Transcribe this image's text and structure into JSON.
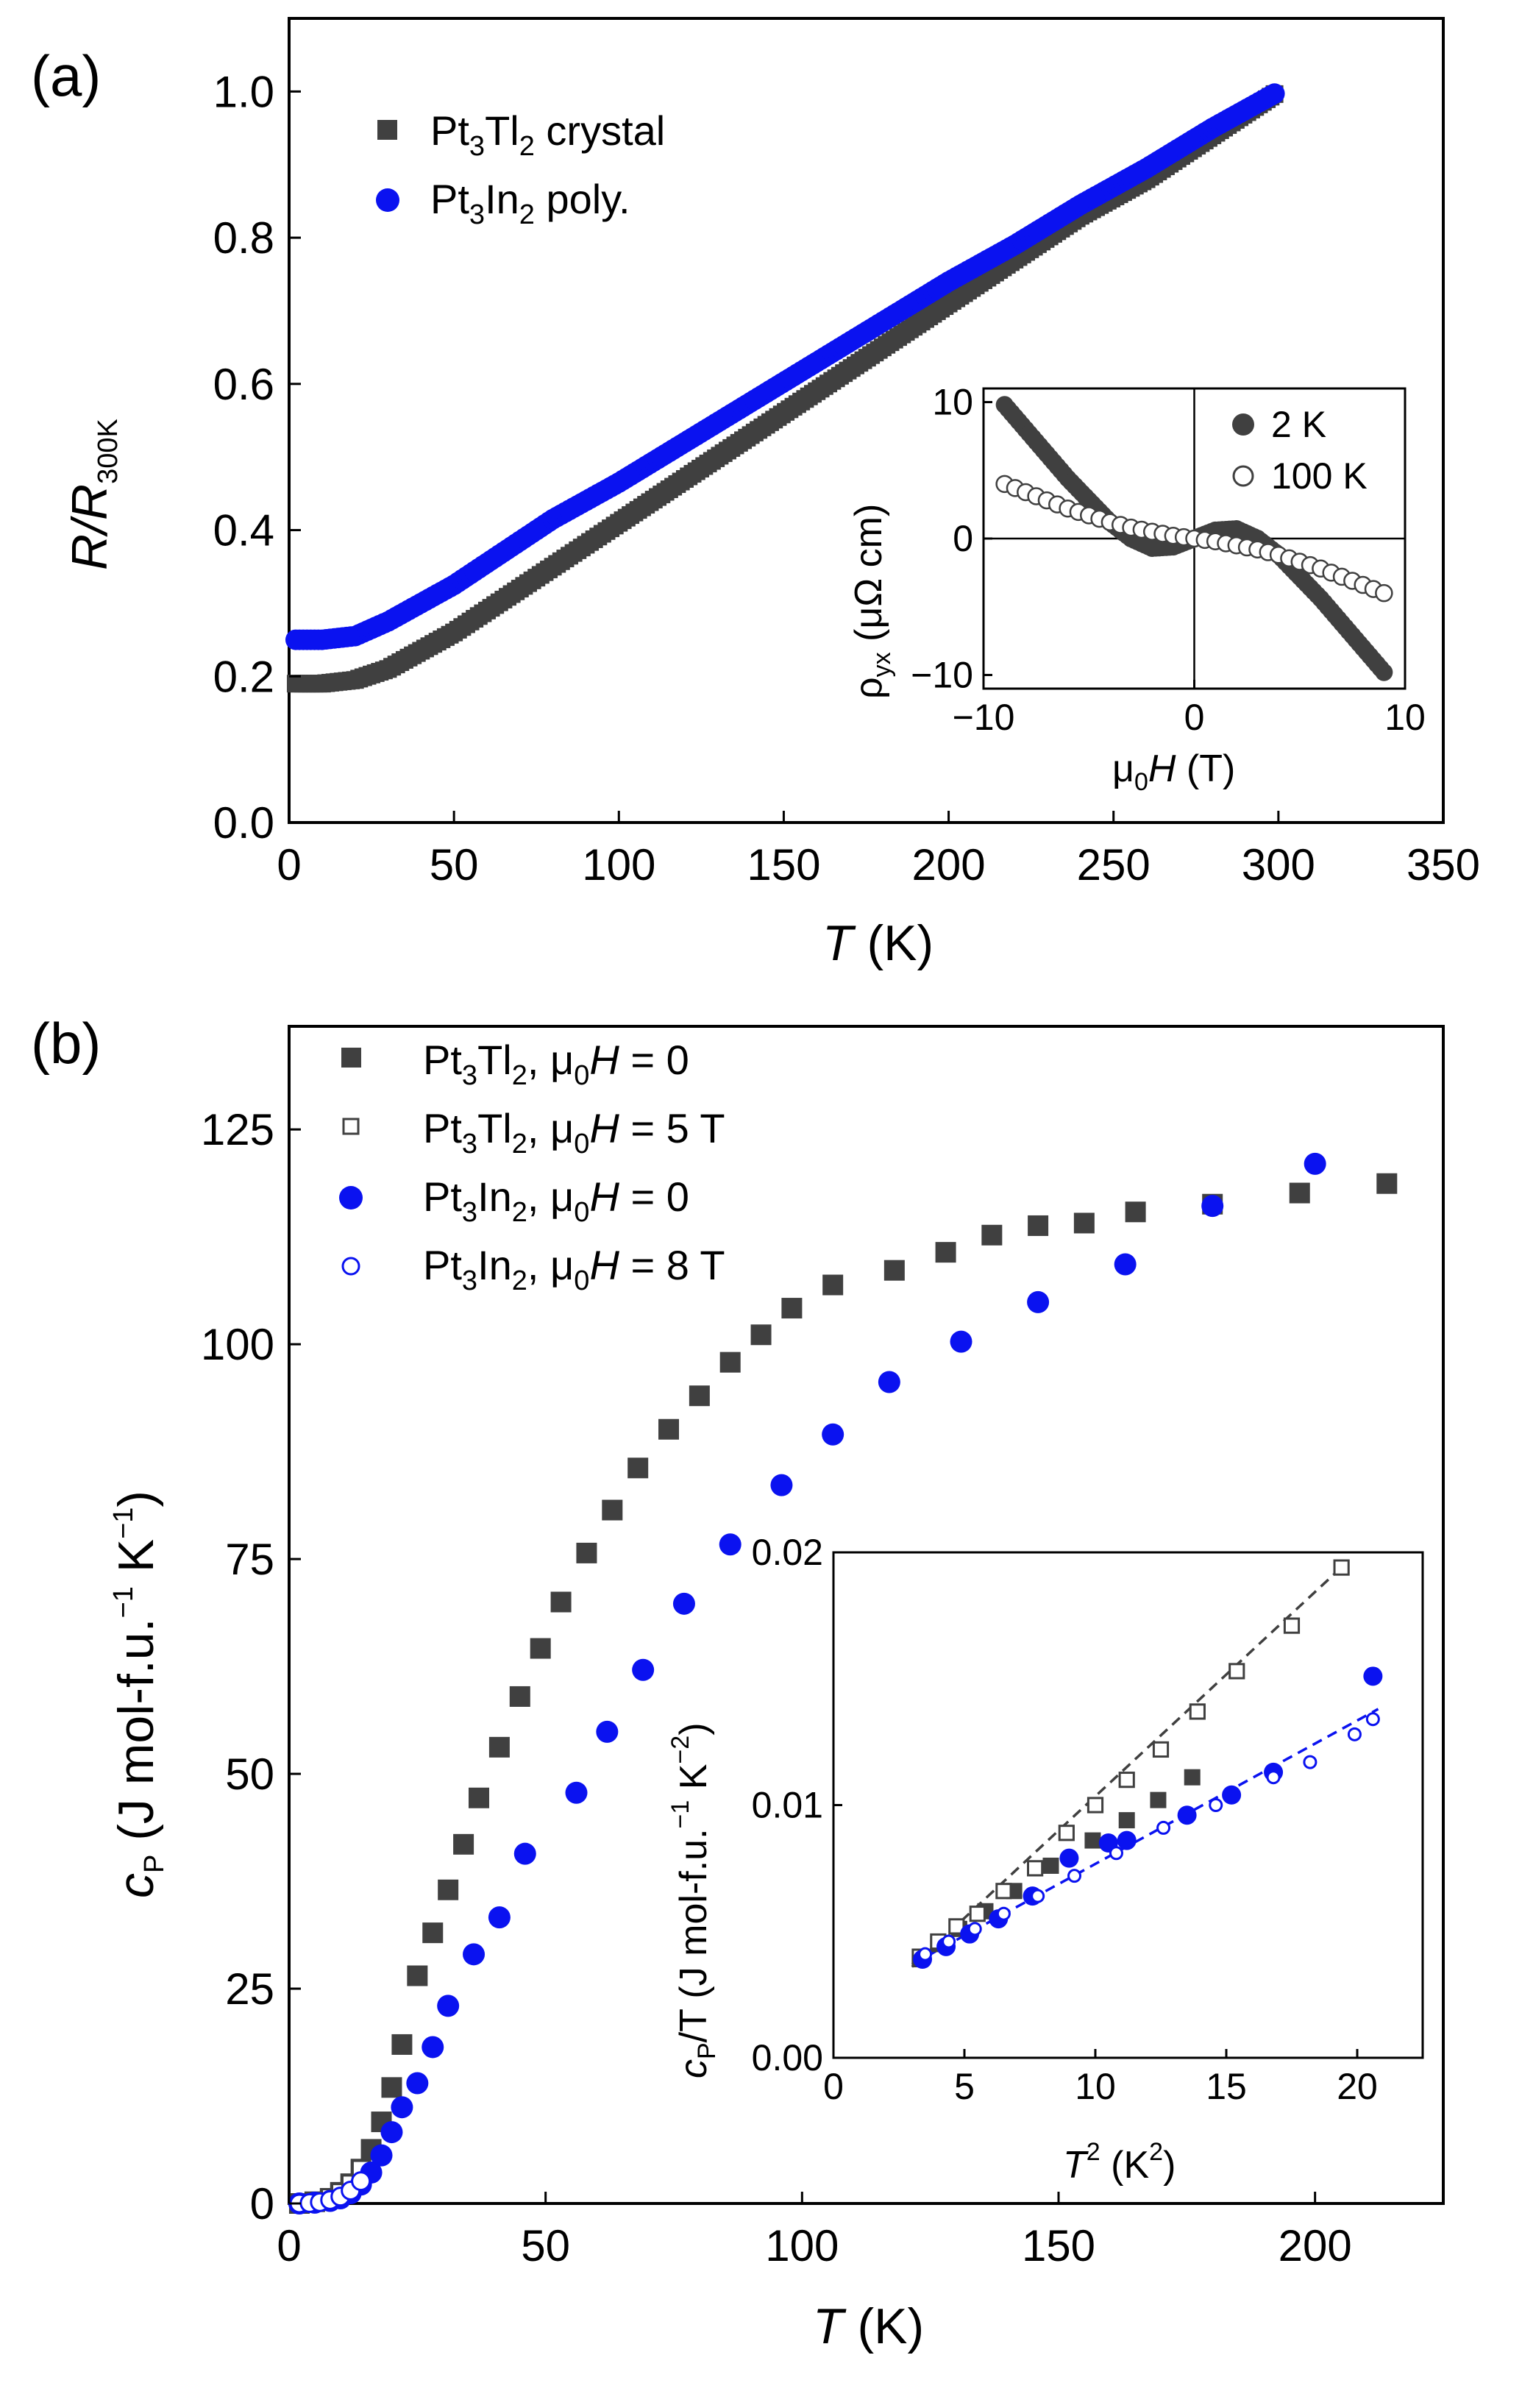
{
  "colors": {
    "dark": "#404040",
    "blue": "#0a12f0",
    "axis": "#000000"
  },
  "panel_a": {
    "label": "(a)",
    "ylabel_main": "R/R",
    "ylabel_sub": "300K",
    "xlabel_var": "T",
    "xlabel_unit": " (K)",
    "xticks": [
      "0",
      "50",
      "100",
      "150",
      "200",
      "250",
      "300",
      "350"
    ],
    "yticks": [
      "0.0",
      "0.2",
      "0.4",
      "0.6",
      "0.8",
      "1.0"
    ],
    "legend": [
      {
        "main": "Pt",
        "sub1": "3",
        "mid": "Tl",
        "sub2": "2",
        "tail": " crystal",
        "marker": "square-filled"
      },
      {
        "main": "Pt",
        "sub1": "3",
        "mid": "In",
        "sub2": "2",
        "tail": " poly.",
        "marker": "circle-filled"
      }
    ],
    "inset": {
      "ylabel_main": "ρ",
      "ylabel_sub": "yx",
      "ylabel_unit": " (μΩ cm)",
      "xlabel_pre": "μ",
      "xlabel_sub": "0",
      "xlabel_var": "H",
      "xlabel_unit": " (T)",
      "xticks": [
        "−10",
        "0",
        "10"
      ],
      "yticks": [
        "−10",
        "0",
        "10"
      ],
      "legend": [
        "2 K",
        "100 K"
      ]
    }
  },
  "panel_b": {
    "label": "(b)",
    "ylabel_main": "c",
    "ylabel_sub": "P",
    "ylabel_unit": " (J mol-f.u.",
    "ylabel_sup1": "−1",
    "ylabel_unit2": " K",
    "ylabel_sup2": "−1",
    "ylabel_close": ")",
    "xlabel_var": "T",
    "xlabel_unit": " (K)",
    "xticks": [
      "0",
      "50",
      "100",
      "150",
      "200"
    ],
    "yticks": [
      "0",
      "25",
      "50",
      "75",
      "100",
      "125"
    ],
    "legend": [
      {
        "compound": "Pt3Tl2",
        "field": " = 0",
        "marker": "square-filled"
      },
      {
        "compound": "Pt3Tl2",
        "field": " = 5 T",
        "marker": "square-open"
      },
      {
        "compound": "Pt3In2",
        "field": " = 0",
        "marker": "circle-filled"
      },
      {
        "compound": "Pt3In2",
        "field": " = 8 T",
        "marker": "circle-open"
      }
    ],
    "inset": {
      "ylabel_main": "c",
      "ylabel_sub": "P",
      "ylabel_rest": "/T (J mol-f.u.",
      "ylabel_sup1": "−1",
      "ylabel_unit2": " K",
      "ylabel_sup2": "−2",
      "ylabel_close": ")",
      "xlabel_var": "T",
      "xlabel_sup": "2",
      "xlabel_unit": " (K",
      "xlabel_unit_sup": "2",
      "xlabel_close": ")",
      "xticks": [
        "0",
        "5",
        "10",
        "15",
        "20"
      ],
      "yticks": [
        "0.00",
        "0.01",
        "0.02"
      ]
    }
  },
  "chart_data": [
    {
      "type": "scatter",
      "panel": "(a)",
      "xlabel": "T (K)",
      "ylabel": "R/R300K",
      "xlim": [
        0,
        350
      ],
      "ylim": [
        0,
        1.1
      ],
      "series": [
        {
          "name": "Pt3Tl2 crystal",
          "marker": "square-filled",
          "color": "#404040",
          "x": [
            2,
            10,
            20,
            30,
            40,
            50,
            60,
            70,
            80,
            90,
            100,
            120,
            140,
            160,
            180,
            200,
            220,
            240,
            260,
            280,
            300
          ],
          "y": [
            0.19,
            0.19,
            0.195,
            0.21,
            0.235,
            0.26,
            0.29,
            0.32,
            0.35,
            0.38,
            0.41,
            0.47,
            0.53,
            0.59,
            0.65,
            0.71,
            0.77,
            0.83,
            0.88,
            0.94,
            1.0
          ]
        },
        {
          "name": "Pt3In2 poly.",
          "marker": "circle-filled",
          "color": "#0a12f0",
          "x": [
            2,
            10,
            20,
            30,
            40,
            50,
            60,
            70,
            80,
            90,
            100,
            120,
            140,
            160,
            180,
            200,
            220,
            240,
            260,
            280,
            300
          ],
          "y": [
            0.25,
            0.25,
            0.255,
            0.275,
            0.3,
            0.325,
            0.355,
            0.385,
            0.415,
            0.44,
            0.465,
            0.52,
            0.575,
            0.63,
            0.685,
            0.74,
            0.79,
            0.845,
            0.895,
            0.95,
            1.0
          ]
        }
      ]
    },
    {
      "type": "scatter",
      "panel": "(a) inset",
      "xlabel": "μ0H (T)",
      "ylabel": "ρyx (μΩ cm)",
      "xlim": [
        -10,
        10
      ],
      "ylim": [
        -11,
        11
      ],
      "series": [
        {
          "name": "2 K",
          "marker": "circle-filled",
          "color": "#404040",
          "x": [
            -9,
            -8,
            -7,
            -6,
            -5,
            -4,
            -3,
            -2,
            -1,
            0,
            1,
            2,
            3,
            4,
            5,
            6,
            7,
            8,
            9
          ],
          "y": [
            9.8,
            8.0,
            6.2,
            4.4,
            2.8,
            1.2,
            0.0,
            -0.7,
            -0.6,
            0.0,
            0.6,
            0.7,
            0.0,
            -1.2,
            -2.8,
            -4.4,
            -6.2,
            -8.0,
            -9.8
          ]
        },
        {
          "name": "100 K",
          "marker": "circle-open",
          "color": "#404040",
          "x": [
            -9,
            -8,
            -7,
            -6,
            -5,
            -4,
            -3,
            -2,
            -1,
            0,
            1,
            2,
            3,
            4,
            5,
            6,
            7,
            8,
            9
          ],
          "y": [
            4.0,
            3.4,
            2.8,
            2.2,
            1.7,
            1.2,
            0.8,
            0.5,
            0.2,
            0.0,
            -0.2,
            -0.5,
            -0.8,
            -1.2,
            -1.7,
            -2.2,
            -2.8,
            -3.4,
            -4.0
          ]
        }
      ]
    },
    {
      "type": "scatter",
      "panel": "(b)",
      "xlabel": "T (K)",
      "ylabel": "cP (J mol-f.u.−1 K−1)",
      "xlim": [
        0,
        225
      ],
      "ylim": [
        0,
        137
      ],
      "series": [
        {
          "name": "Pt3Tl2, μ0H = 0",
          "marker": "square-filled",
          "color": "#404040",
          "x": [
            2,
            5,
            8,
            10,
            12,
            14,
            16,
            18,
            20,
            22,
            25,
            28,
            31,
            34,
            37,
            41,
            45,
            49,
            53,
            58,
            63,
            68,
            74,
            80,
            86,
            92,
            98,
            106,
            118,
            128,
            137,
            146,
            155,
            165,
            180,
            197,
            214
          ],
          "y": [
            0,
            0.2,
            0.6,
            1.3,
            2.3,
            4.0,
            6.3,
            9.5,
            13.5,
            18.5,
            26.5,
            31.5,
            36.5,
            41.8,
            47.2,
            53.1,
            59.0,
            64.6,
            70.0,
            75.7,
            80.7,
            85.6,
            90.1,
            94.0,
            97.9,
            101.1,
            104.2,
            106.9,
            108.6,
            110.7,
            112.7,
            113.8,
            114.1,
            115.4,
            116.3,
            117.6,
            118.7
          ]
        },
        {
          "name": "Pt3Tl2, μ0H = 5 T",
          "marker": "square-open",
          "color": "#404040",
          "x": [
            2,
            4,
            6,
            8,
            10,
            12,
            14
          ],
          "y": [
            0,
            0.1,
            0.3,
            0.7,
            1.3,
            2.3,
            4.0
          ]
        },
        {
          "name": "Pt3In2, μ0H = 0",
          "marker": "circle-filled",
          "color": "#0a12f0",
          "x": [
            2,
            5,
            8,
            10,
            12,
            14,
            16,
            18,
            20,
            22,
            25,
            28,
            31,
            36,
            41,
            46,
            56,
            62,
            69,
            77,
            86,
            96,
            106,
            117,
            131,
            146,
            163,
            180,
            200
          ],
          "y": [
            0,
            0.1,
            0.3,
            0.6,
            1.2,
            2.2,
            3.6,
            5.6,
            8.3,
            11.2,
            14.0,
            18.2,
            23.0,
            29.0,
            33.3,
            40.7,
            47.8,
            54.9,
            62.1,
            69.8,
            76.7,
            83.6,
            89.5,
            95.6,
            100.3,
            104.9,
            109.3,
            116.1,
            121.0
          ]
        },
        {
          "name": "Pt3In2, μ0H = 8 T",
          "marker": "circle-open",
          "color": "#0a12f0",
          "x": [
            2,
            4,
            6,
            8,
            10,
            12,
            14
          ],
          "y": [
            0,
            0.05,
            0.15,
            0.4,
            0.8,
            1.5,
            2.6
          ]
        }
      ]
    },
    {
      "type": "scatter",
      "panel": "(b) inset",
      "xlabel": "T2 (K2)",
      "ylabel": "cP/T (J mol-f.u.−1 K−2)",
      "xlim": [
        0,
        22.5
      ],
      "ylim": [
        0,
        0.02
      ],
      "series": [
        {
          "marker": "square-filled",
          "color": "#404040",
          "x": [
            3.3,
            4.0,
            4.8,
            5.8,
            6.9,
            8.3,
            9.9,
            11.2,
            12.4,
            13.7
          ],
          "y": [
            0.0039,
            0.0045,
            0.0051,
            0.0058,
            0.0066,
            0.0076,
            0.0086,
            0.0094,
            0.0102,
            0.0111
          ]
        },
        {
          "marker": "square-open",
          "color": "#404040",
          "x": [
            3.3,
            4.0,
            4.7,
            5.5,
            6.5,
            7.7,
            8.9,
            10.0,
            11.2,
            12.5,
            13.9,
            15.4,
            17.5,
            19.4
          ],
          "y": [
            0.004,
            0.0046,
            0.0052,
            0.0057,
            0.0066,
            0.0075,
            0.0089,
            0.01,
            0.011,
            0.0122,
            0.0137,
            0.0153,
            0.0171,
            0.0194
          ]
        },
        {
          "marker": "circle-filled",
          "color": "#0a12f0",
          "x": [
            3.4,
            4.3,
            5.2,
            6.3,
            7.6,
            9.0,
            10.5,
            11.2,
            13.5,
            15.2,
            16.8,
            20.6
          ],
          "y": [
            0.0039,
            0.0044,
            0.0049,
            0.0055,
            0.0064,
            0.0079,
            0.0085,
            0.0086,
            0.0096,
            0.0104,
            0.0113,
            0.0151
          ]
        },
        {
          "marker": "circle-open",
          "color": "#0a12f0",
          "x": [
            3.5,
            4.4,
            5.4,
            6.5,
            7.8,
            9.2,
            10.8,
            12.6,
            14.6,
            16.8,
            18.2,
            19.9,
            20.6
          ],
          "y": [
            0.0041,
            0.0046,
            0.0051,
            0.0057,
            0.0064,
            0.0072,
            0.0081,
            0.0091,
            0.01,
            0.0111,
            0.0117,
            0.0128,
            0.0134
          ]
        }
      ],
      "fits": [
        {
          "color": "#404040",
          "style": "dashed",
          "x": [
            3.0,
            19.6
          ],
          "y": [
            0.0036,
            0.0196
          ]
        },
        {
          "color": "#0a12f0",
          "style": "dashed",
          "x": [
            3.0,
            20.8
          ],
          "y": [
            0.0037,
            0.0138
          ]
        }
      ]
    }
  ]
}
